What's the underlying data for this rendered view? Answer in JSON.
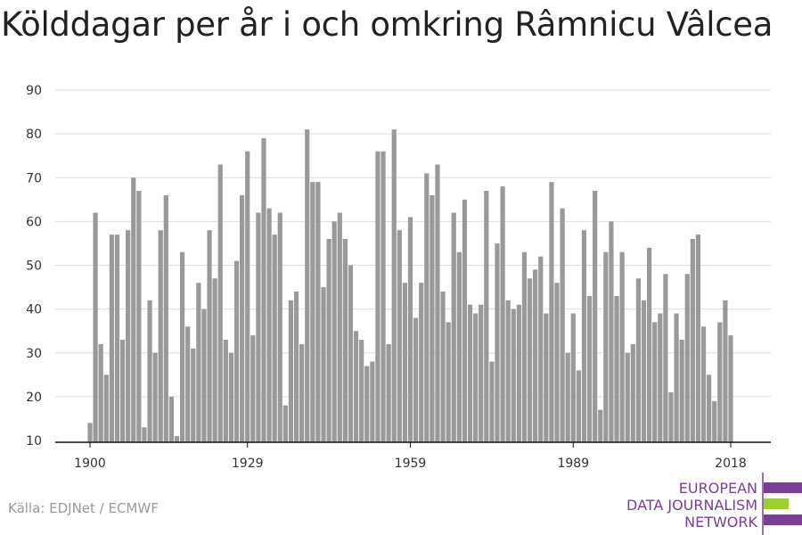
{
  "title": "Kölddagar per år i och omkring Râmnicu Vâlcea",
  "source": "Källa: EDJNet / ECMWF",
  "logo": {
    "lines": [
      "EUROPEAN",
      "DATA JOURNALISM",
      "NETWORK"
    ],
    "color": "#7a3d99",
    "accent": "#9bd12b"
  },
  "chart_data": {
    "type": "bar",
    "title": "Kölddagar per år i och omkring Râmnicu Vâlcea",
    "xlabel": "",
    "ylabel": "",
    "x_start": 1900,
    "x_ticks": [
      1900,
      1929,
      1959,
      1989,
      2018
    ],
    "y_ticks": [
      10,
      20,
      30,
      40,
      50,
      60,
      70,
      80,
      90
    ],
    "ylim": [
      10,
      90
    ],
    "bar_color": "#999999",
    "grid": true,
    "values": [
      14,
      62,
      32,
      25,
      57,
      57,
      33,
      58,
      70,
      67,
      13,
      42,
      30,
      58,
      66,
      20,
      11,
      53,
      36,
      31,
      46,
      40,
      58,
      47,
      73,
      33,
      30,
      51,
      66,
      76,
      34,
      62,
      79,
      63,
      57,
      62,
      18,
      42,
      44,
      32,
      81,
      69,
      69,
      45,
      56,
      60,
      62,
      56,
      50,
      35,
      33,
      27,
      28,
      76,
      76,
      32,
      81,
      58,
      46,
      61,
      38,
      46,
      71,
      66,
      73,
      44,
      37,
      62,
      53,
      65,
      41,
      39,
      41,
      67,
      28,
      55,
      68,
      42,
      40,
      41,
      53,
      47,
      49,
      52,
      39,
      69,
      46,
      63,
      30,
      39,
      26,
      58,
      43,
      67,
      17,
      53,
      60,
      43,
      53,
      30,
      32,
      47,
      42,
      54,
      37,
      39,
      48,
      21,
      39,
      33,
      48,
      56,
      57,
      36,
      25,
      19,
      37,
      42,
      34
    ]
  }
}
